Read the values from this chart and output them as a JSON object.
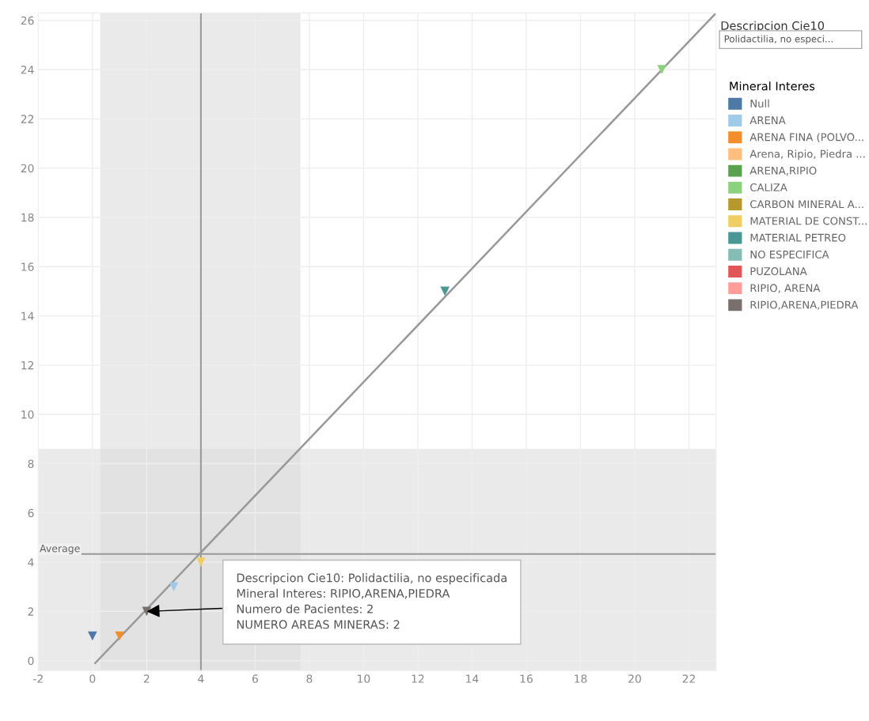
{
  "chart_data": {
    "type": "scatter",
    "legend_title": "Mineral Interes",
    "legend": "right",
    "marker": "triangle",
    "grid": true,
    "xlim": [
      -2,
      23
    ],
    "ylim": [
      -0.4,
      26.3
    ],
    "xticks": [
      -2,
      0,
      2,
      4,
      6,
      8,
      10,
      12,
      14,
      16,
      18,
      20,
      22
    ],
    "yticks": [
      0,
      2,
      4,
      6,
      8,
      10,
      12,
      14,
      16,
      18,
      20,
      22,
      24,
      26
    ],
    "series": [
      {
        "name": "Null",
        "color": "#4e79a7",
        "x": [
          0
        ],
        "values": [
          1
        ]
      },
      {
        "name": "ARENA",
        "color": "#a0cbe8",
        "x": [
          3
        ],
        "values": [
          3
        ]
      },
      {
        "name": "ARENA FINA (POLVO...",
        "color": "#f28e2b",
        "x": [
          1
        ],
        "values": [
          1
        ]
      },
      {
        "name": "Arena, Ripio, Piedra ...",
        "color": "#ffbe7d"
      },
      {
        "name": "ARENA,RIPIO",
        "color": "#59a14f"
      },
      {
        "name": "CALIZA",
        "color": "#8cd17d",
        "x": [
          21
        ],
        "values": [
          24
        ]
      },
      {
        "name": "CARBON MINERAL A...",
        "color": "#b6992d"
      },
      {
        "name": "MATERIAL DE CONST...",
        "color": "#f1ce63",
        "x": [
          4
        ],
        "values": [
          4
        ]
      },
      {
        "name": "MATERIAL PETREO",
        "color": "#499894",
        "x": [
          13
        ],
        "values": [
          15
        ]
      },
      {
        "name": "NO ESPECIFICA",
        "color": "#86bcb6"
      },
      {
        "name": "PUZOLANA",
        "color": "#e15759"
      },
      {
        "name": "RIPIO, ARENA",
        "color": "#ff9d9a"
      },
      {
        "name": "RIPIO,ARENA,PIEDRA",
        "color": "#79706e",
        "x": [
          2
        ],
        "values": [
          2
        ]
      },
      {
        "type": "line",
        "marker": "none",
        "color": "#999999",
        "x": [
          0.1,
          23
        ],
        "values": [
          -0.1,
          26.3
        ]
      }
    ],
    "ref_lines": [
      {
        "axis": "x",
        "value": 4,
        "color": "#999999"
      },
      {
        "axis": "y",
        "value": 4.33,
        "label": "Average",
        "color": "#999999"
      }
    ],
    "bands": [
      {
        "axis": "x",
        "from": 0.29,
        "to": 7.67,
        "color": "#dcdcdc"
      },
      {
        "axis": "y",
        "from": -0.4,
        "to": 8.6,
        "color": "#dcdcdc"
      }
    ],
    "annotations": [
      "Descripcion Cie10",
      "Polidactilia, no especi...",
      {
        "text": "Descripcion Cie10: Polidactilia, no especificada\nMineral Interes: RIPIO,ARENA,PIEDRA\nNumero de Pacientes: 2\nNUMERO AREAS MINERAS: 2",
        "x": 2,
        "y": 2
      }
    ]
  }
}
